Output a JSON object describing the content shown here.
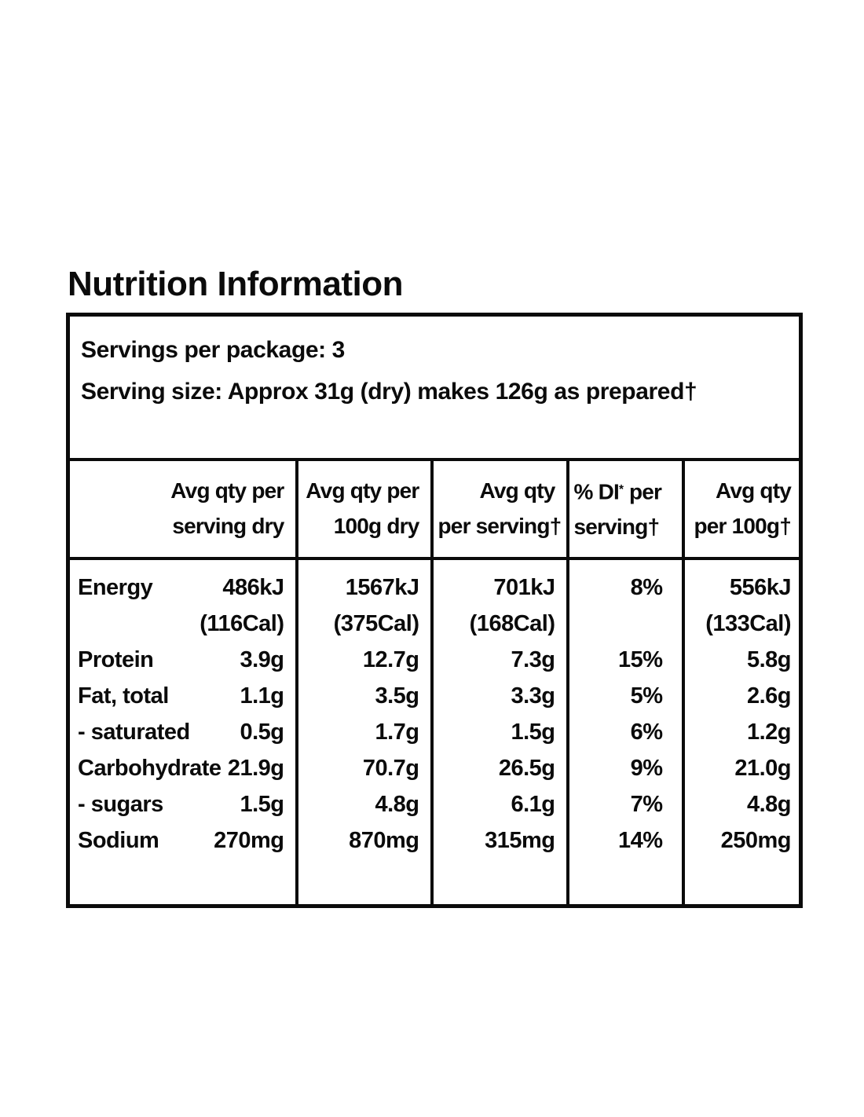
{
  "colors": {
    "ink": "#0b0b0b",
    "paper": "#ffffff"
  },
  "title": "Nutrition Information",
  "serving_panel": {
    "servings_line": "Servings per package: 3",
    "serving_size_line": "Serving size: Approx 31g (dry) makes 126g as prepared†"
  },
  "table": {
    "headers": [
      {
        "lines": [
          "Avg qty per",
          "serving dry"
        ],
        "align": "right"
      },
      {
        "lines": [
          "Avg qty per",
          "100g dry"
        ],
        "align": "right"
      },
      {
        "lines": [
          "Avg qty",
          "per serving†"
        ],
        "align": "right"
      },
      {
        "lines": [
          "% DI* per",
          "serving†"
        ],
        "align": "left"
      },
      {
        "lines": [
          "Avg qty",
          "per 100g†"
        ],
        "align": "right"
      }
    ],
    "rows": [
      {
        "label": "Energy",
        "values": [
          "486kJ",
          "1567kJ",
          "701kJ",
          "8%",
          "556kJ"
        ]
      },
      {
        "label": "",
        "values": [
          "(116Cal)",
          "(375Cal)",
          "(168Cal)",
          "",
          "(133Cal)"
        ]
      },
      {
        "label": "Protein",
        "values": [
          "3.9g",
          "12.7g",
          "7.3g",
          "15%",
          "5.8g"
        ]
      },
      {
        "label": "Fat, total",
        "values": [
          "1.1g",
          "3.5g",
          "3.3g",
          "5%",
          "2.6g"
        ]
      },
      {
        "label": "- saturated",
        "values": [
          "0.5g",
          "1.7g",
          "1.5g",
          "6%",
          "1.2g"
        ]
      },
      {
        "label": "Carbohydrate",
        "values": [
          "21.9g",
          "70.7g",
          "26.5g",
          "9%",
          "21.0g"
        ]
      },
      {
        "label": "- sugars",
        "values": [
          "1.5g",
          "4.8g",
          "6.1g",
          "7%",
          "4.8g"
        ]
      },
      {
        "label": "Sodium",
        "values": [
          "270mg",
          "870mg",
          "315mg",
          "14%",
          "250mg"
        ]
      }
    ]
  }
}
